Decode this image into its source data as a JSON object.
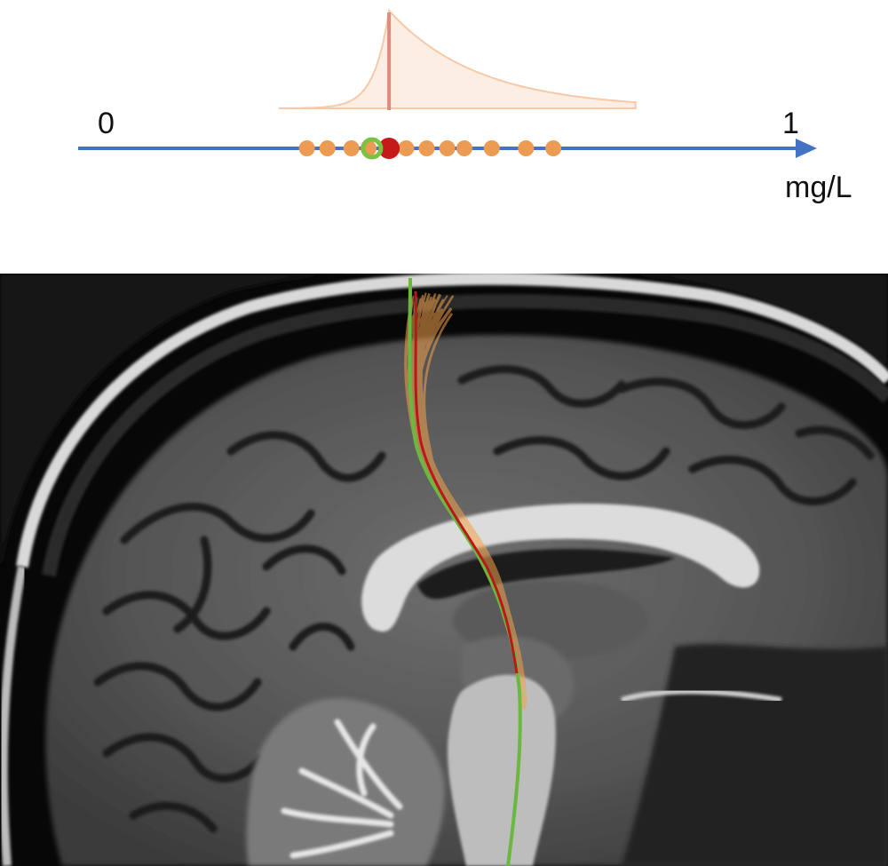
{
  "scale": {
    "min_label": "0",
    "max_label": "1",
    "unit": "mg/L",
    "range": [
      0,
      1
    ],
    "axis_color": "#4472c4"
  },
  "distribution": {
    "mode": 0.41,
    "fill_color": "#fdeee3",
    "stroke_color": "#f6c9a8",
    "mode_line_color": "#e08a7e"
  },
  "samples": {
    "values": [
      0.29,
      0.32,
      0.355,
      0.38,
      0.435,
      0.465,
      0.495,
      0.52,
      0.56,
      0.61,
      0.65
    ],
    "color": "#ec9b52"
  },
  "ground_truth": {
    "value": 0.41,
    "color": "#c61a1a"
  },
  "estimate": {
    "value": 0.385,
    "color": "#7cc242"
  },
  "image": {
    "tract_bundle_color": "#f4a24c",
    "reference_tract_color": "#6ab83f",
    "true_tract_color": "#b81818"
  }
}
